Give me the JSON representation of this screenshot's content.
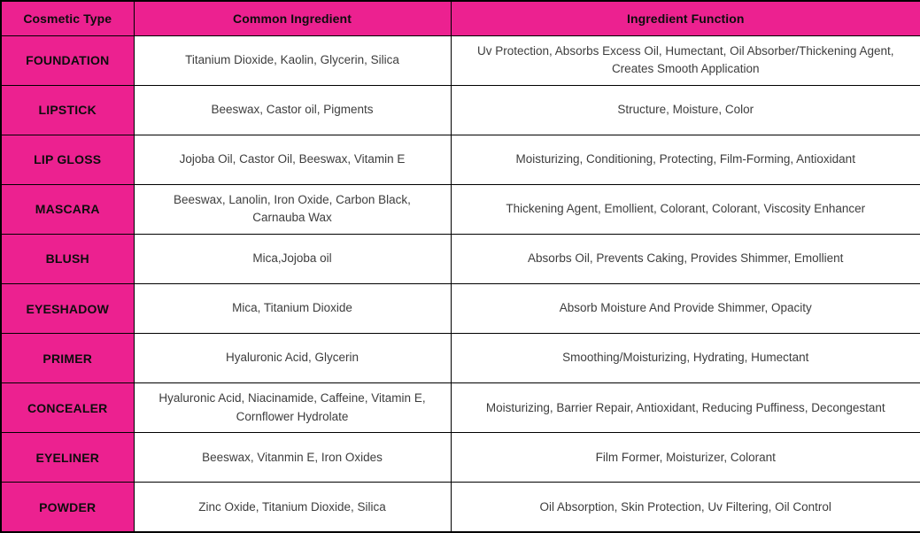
{
  "colors": {
    "accent_pink": "#ec2190",
    "grid_line": "#000000",
    "body_text": "#3d3d3d",
    "header_text": "#0d0d0d"
  },
  "table": {
    "headers": [
      "Cosmetic Type",
      "Common Ingredient",
      "Ingredient Function"
    ],
    "rows": [
      {
        "type": "FOUNDATION",
        "ingredient": "Titanium Dioxide, Kaolin, Glycerin, Silica",
        "function": "Uv Protection, Absorbs Excess Oil, Humectant, Oil Absorber/Thickening Agent, Creates Smooth Application"
      },
      {
        "type": "LIPSTICK",
        "ingredient": "Beeswax, Castor oil, Pigments",
        "function": "Structure, Moisture, Color"
      },
      {
        "type": "LIP GLOSS",
        "ingredient": "Jojoba Oil, Castor Oil, Beeswax, Vitamin E",
        "function": "Moisturizing, Conditioning, Protecting, Film-Forming, Antioxidant"
      },
      {
        "type": "MASCARA",
        "ingredient": "Beeswax, Lanolin, Iron Oxide, Carbon Black, Carnauba Wax",
        "function": "Thickening Agent, Emollient, Colorant, Colorant, Viscosity Enhancer"
      },
      {
        "type": "BLUSH",
        "ingredient": "Mica,Jojoba oil",
        "function": "Absorbs Oil, Prevents Caking, Provides Shimmer, Emollient"
      },
      {
        "type": "EYESHADOW",
        "ingredient": "Mica, Titanium Dioxide",
        "function": "Absorb Moisture And Provide Shimmer, Opacity"
      },
      {
        "type": "PRIMER",
        "ingredient": "Hyaluronic Acid, Glycerin",
        "function": "Smoothing/Moisturizing, Hydrating, Humectant"
      },
      {
        "type": "CONCEALER",
        "ingredient": "Hyaluronic Acid, Niacinamide, Caffeine, Vitamin E, Cornflower Hydrolate",
        "function": "Moisturizing, Barrier Repair, Antioxidant, Reducing Puffiness, Decongestant"
      },
      {
        "type": "EYELINER",
        "ingredient": "Beeswax, Vitanmin E, Iron Oxides",
        "function": "Film Former, Moisturizer, Colorant"
      },
      {
        "type": "POWDER",
        "ingredient": "Zinc Oxide, Titanium Dioxide, Silica",
        "function": "Oil Absorption, Skin Protection, Uv Filtering, Oil Control"
      }
    ]
  }
}
